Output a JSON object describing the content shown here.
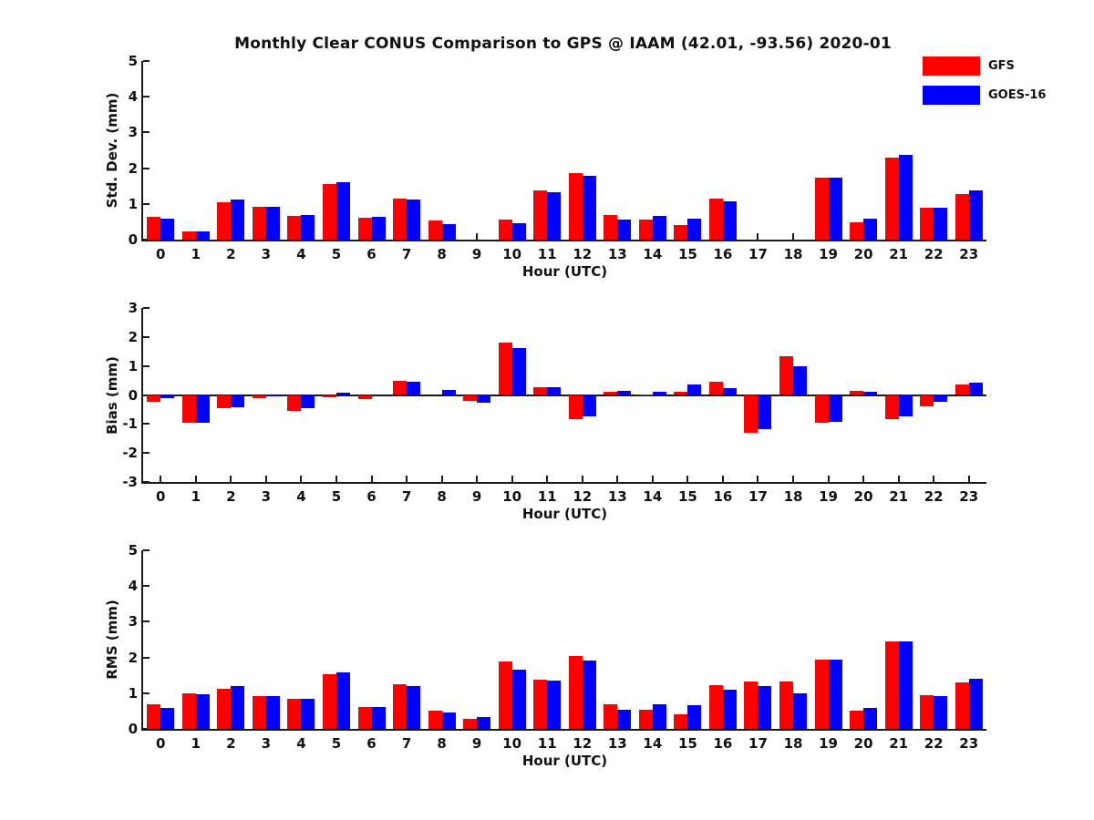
{
  "title": "Monthly Clear CONUS Comparison to GPS @ IAAM (42.01, -93.56) 2020-01",
  "colors": {
    "gfs": "#ff0000",
    "goes16": "#0000ff",
    "axis": "#1a1a1a",
    "background": "#ffffff"
  },
  "legend": {
    "position": "top-right",
    "items": [
      {
        "label": "GFS",
        "color": "#ff0000"
      },
      {
        "label": "GOES-16",
        "color": "#0000ff"
      }
    ]
  },
  "chart_data": [
    {
      "type": "bar",
      "title": "Std. Dev. subplot",
      "ylabel": "Std. Dev. (mm)",
      "xlabel": "Hour (UTC)",
      "ylim": [
        0,
        5
      ],
      "yticks": [
        0,
        1,
        2,
        3,
        4,
        5
      ],
      "zero_line": false,
      "grid": false,
      "categories": [
        "0",
        "1",
        "2",
        "3",
        "4",
        "5",
        "6",
        "7",
        "8",
        "9",
        "10",
        "11",
        "12",
        "13",
        "14",
        "15",
        "16",
        "17",
        "18",
        "19",
        "20",
        "21",
        "22",
        "23"
      ],
      "series": [
        {
          "name": "GFS",
          "color": "#ff0000",
          "values": [
            0.63,
            0.22,
            1.05,
            0.92,
            0.66,
            1.55,
            0.61,
            1.15,
            0.53,
            0,
            0.56,
            1.37,
            1.86,
            0.68,
            0.57,
            0.4,
            1.16,
            0,
            0,
            1.73,
            0.49,
            2.3,
            0.9,
            1.28
          ]
        },
        {
          "name": "GOES-16",
          "color": "#0000ff",
          "values": [
            0.58,
            0.24,
            1.12,
            0.92,
            0.69,
            1.6,
            0.64,
            1.11,
            0.44,
            0,
            0.46,
            1.32,
            1.79,
            0.55,
            0.67,
            0.58,
            1.07,
            0,
            0,
            1.74,
            0.58,
            2.36,
            0.89,
            1.38
          ]
        }
      ]
    },
    {
      "type": "bar",
      "title": "Bias subplot",
      "ylabel": "Bias (mm)",
      "xlabel": "Hour (UTC)",
      "ylim": [
        -3,
        3
      ],
      "yticks": [
        -3,
        -2,
        -1,
        0,
        1,
        2,
        3
      ],
      "zero_line": true,
      "grid": false,
      "categories": [
        "0",
        "1",
        "2",
        "3",
        "4",
        "5",
        "6",
        "7",
        "8",
        "9",
        "10",
        "11",
        "12",
        "13",
        "14",
        "15",
        "16",
        "17",
        "18",
        "19",
        "20",
        "21",
        "22",
        "23"
      ],
      "series": [
        {
          "name": "GFS",
          "color": "#ff0000",
          "values": [
            -0.22,
            -0.97,
            -0.46,
            -0.12,
            -0.54,
            -0.07,
            -0.13,
            0.48,
            0,
            -0.2,
            1.8,
            0.26,
            -0.84,
            0.1,
            0.03,
            0.1,
            0.44,
            -1.31,
            1.32,
            -0.97,
            0.15,
            -0.83,
            -0.39,
            0.35
          ]
        },
        {
          "name": "GOES-16",
          "color": "#0000ff",
          "values": [
            -0.1,
            -0.95,
            -0.43,
            -0.04,
            -0.46,
            0.07,
            0,
            0.47,
            0.17,
            -0.28,
            1.61,
            0.26,
            -0.74,
            0.15,
            0.12,
            0.35,
            0.22,
            -1.18,
            0.98,
            -0.92,
            0.1,
            -0.73,
            -0.22,
            0.42
          ]
        }
      ]
    },
    {
      "type": "bar",
      "title": "RMS subplot",
      "ylabel": "RMS (mm)",
      "xlabel": "Hour (UTC)",
      "ylim": [
        0,
        5
      ],
      "yticks": [
        0,
        1,
        2,
        3,
        4,
        5
      ],
      "zero_line": false,
      "grid": false,
      "categories": [
        "0",
        "1",
        "2",
        "3",
        "4",
        "5",
        "6",
        "7",
        "8",
        "9",
        "10",
        "11",
        "12",
        "13",
        "14",
        "15",
        "16",
        "17",
        "18",
        "19",
        "20",
        "21",
        "22",
        "23"
      ],
      "series": [
        {
          "name": "GFS",
          "color": "#ff0000",
          "values": [
            0.68,
            1.0,
            1.13,
            0.91,
            0.85,
            1.54,
            0.62,
            1.26,
            0.51,
            0.27,
            1.88,
            1.39,
            2.03,
            0.68,
            0.53,
            0.41,
            1.22,
            1.32,
            1.33,
            1.95,
            0.51,
            2.44,
            0.94,
            1.3
          ]
        },
        {
          "name": "GOES-16",
          "color": "#0000ff",
          "values": [
            0.59,
            0.97,
            1.21,
            0.91,
            0.85,
            1.57,
            0.62,
            1.21,
            0.47,
            0.32,
            1.67,
            1.35,
            1.92,
            0.53,
            0.7,
            0.67,
            1.1,
            1.19,
            1.0,
            1.95,
            0.58,
            2.44,
            0.91,
            1.41
          ]
        }
      ]
    }
  ]
}
